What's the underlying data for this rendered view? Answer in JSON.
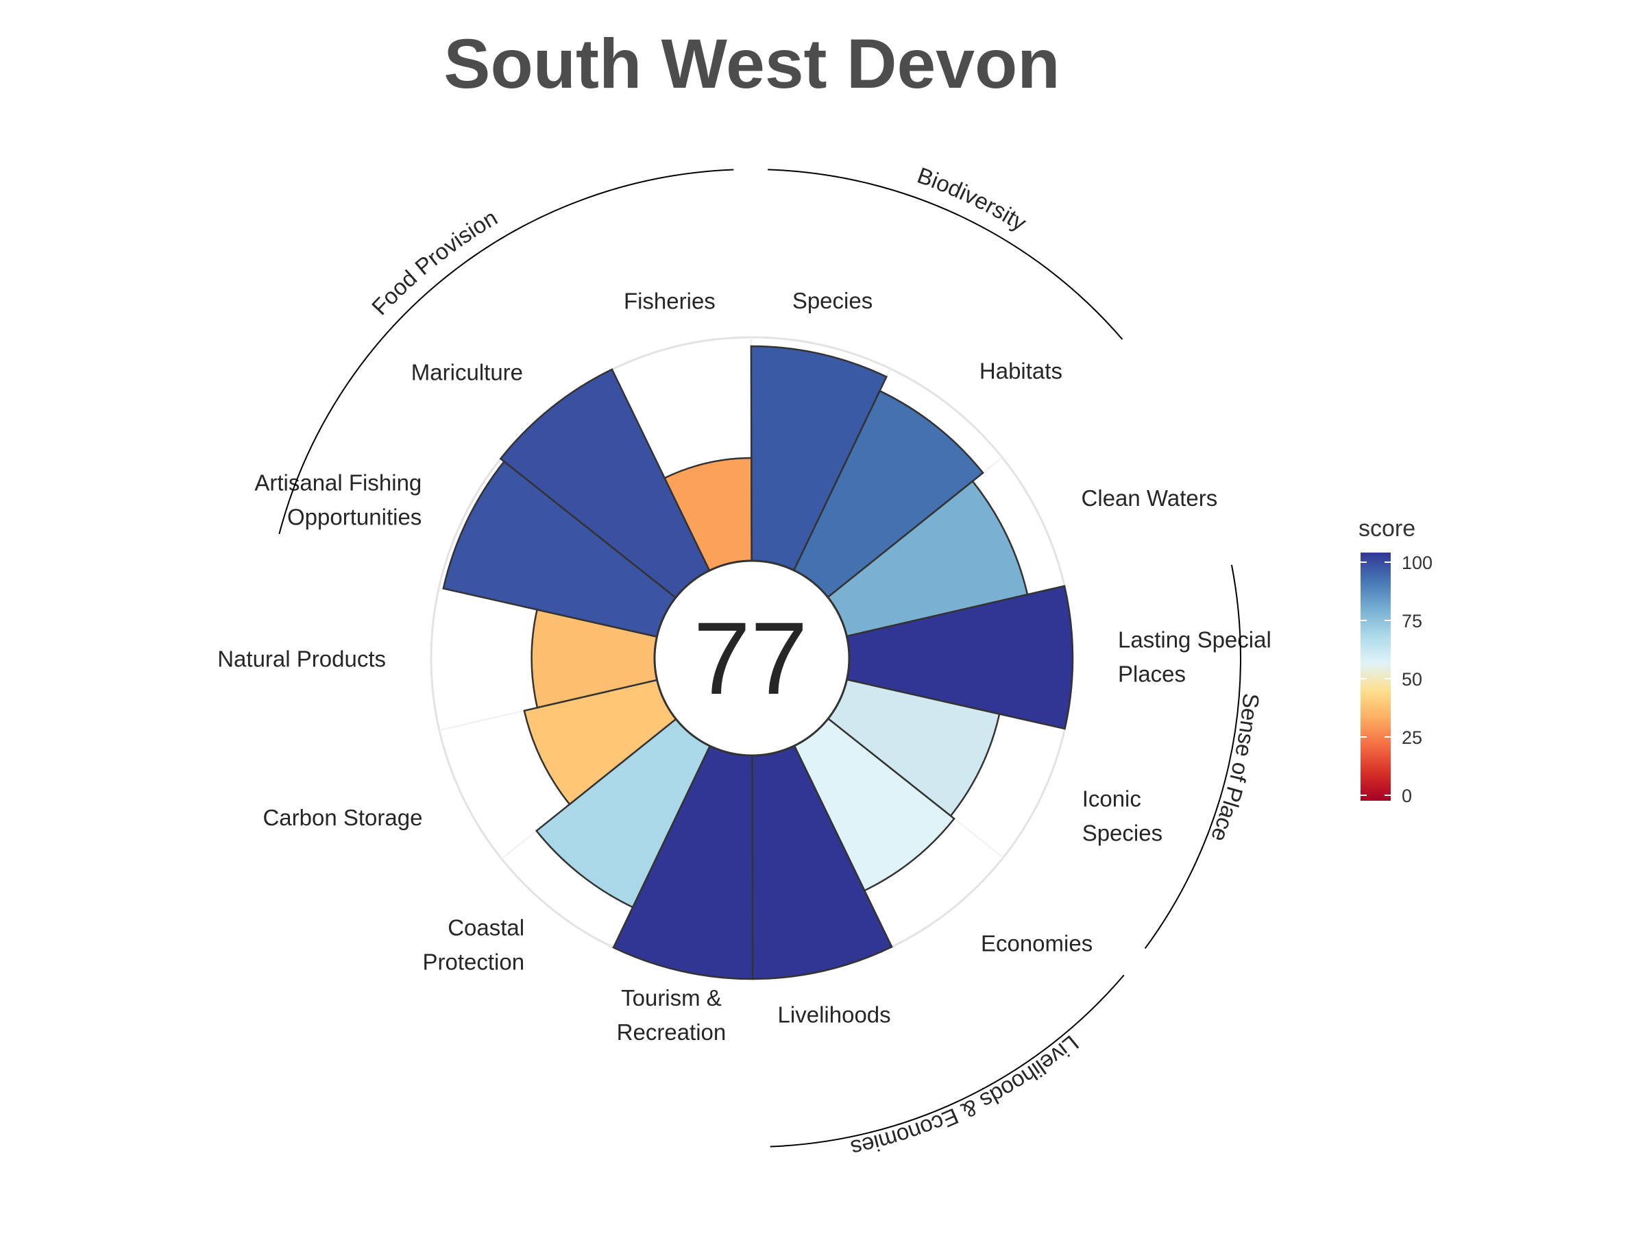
{
  "chart_data": {
    "type": "flower",
    "title": "South West Devon",
    "overall_score": "77",
    "ylim": [
      0,
      100
    ],
    "goals": [
      {
        "name": "Natural Products",
        "lines": [
          "Natural Products"
        ],
        "value": 55,
        "color": "#fdbe6f"
      },
      {
        "name": "Artisanal Fishing Opportunities",
        "lines": [
          "Artisanal Fishing",
          "Opportunities"
        ],
        "value": 98,
        "color": "#3b54a3"
      },
      {
        "name": "Mariculture",
        "lines": [
          "Mariculture"
        ],
        "value": 100,
        "color": "#3a51a2"
      },
      {
        "name": "Fisheries",
        "lines": [
          "Fisheries"
        ],
        "value": 46,
        "color": "#fca15a"
      },
      {
        "name": "Species",
        "lines": [
          "Species"
        ],
        "value": 96,
        "color": "#3b5aa6"
      },
      {
        "name": "Habitats",
        "lines": [
          "Habitats"
        ],
        "value": 89,
        "color": "#4471b0"
      },
      {
        "name": "Clean Waters",
        "lines": [
          "Clean Waters"
        ],
        "value": 83,
        "color": "#7ab0d1"
      },
      {
        "name": "Lasting Special Places",
        "lines": [
          "Lasting Special",
          "Places"
        ],
        "value": 100,
        "color": "#313695"
      },
      {
        "name": "Iconic Species",
        "lines": [
          "Iconic",
          "Species"
        ],
        "value": 70,
        "color": "#d0e9f1"
      },
      {
        "name": "Economies",
        "lines": [
          "Economies"
        ],
        "value": 72,
        "color": "#e0f3f8"
      },
      {
        "name": "Livelihoods",
        "lines": [
          "Livelihoods"
        ],
        "value": 100,
        "color": "#313695"
      },
      {
        "name": "Tourism & Recreation",
        "lines": [
          "Tourism &",
          "Recreation"
        ],
        "value": 100,
        "color": "#313695"
      },
      {
        "name": "Coastal Protection",
        "lines": [
          "Coastal",
          "Protection"
        ],
        "value": 80,
        "color": "#abd8e8"
      },
      {
        "name": "Carbon Storage",
        "lines": [
          "Carbon Storage"
        ],
        "value": 61,
        "color": "#fec675"
      }
    ],
    "groups": [
      {
        "name": "Food Provision",
        "goals": [
          "Artisanal Fishing Opportunities",
          "Mariculture",
          "Fisheries"
        ]
      },
      {
        "name": "Biodiversity",
        "goals": [
          "Species",
          "Habitats"
        ]
      },
      {
        "name": "Sense of Place",
        "goals": [
          "Lasting Special Places",
          "Iconic Species"
        ]
      },
      {
        "name": "Livelihoods & Economies",
        "goals": [
          "Economies",
          "Livelihoods"
        ]
      }
    ],
    "legend": {
      "title": "score",
      "ticks": [
        100,
        75,
        50,
        25,
        0
      ],
      "gradient": [
        "#a50026",
        "#d73027",
        "#f46d43",
        "#fdae61",
        "#fee090",
        "#e0f3f8",
        "#abd9e9",
        "#74add1",
        "#4575b4",
        "#313695"
      ],
      "position": "right"
    }
  }
}
